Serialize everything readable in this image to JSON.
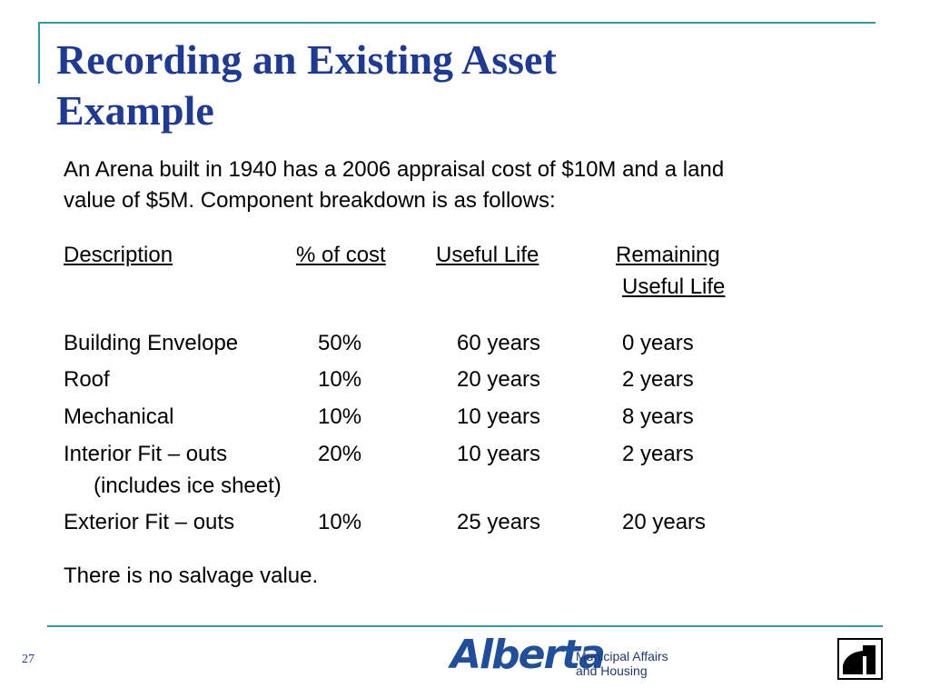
{
  "slide": {
    "title_line1": "Recording an Existing Asset",
    "title_line2": "Example",
    "intro_line1": "An Arena built in 1940 has a 2006 appraisal cost of $10M and a land",
    "intro_line2": "value of $5M.  Component breakdown is as follows:",
    "headers": {
      "description": "Description",
      "pct_cost": "% of cost",
      "useful_life": "Useful Life",
      "remaining_1": "Remaining",
      "remaining_2": "Useful Life"
    },
    "rows": [
      {
        "description": "Building Envelope",
        "pct": "50%",
        "life": "60 years",
        "remaining": "0 years"
      },
      {
        "description": "Roof",
        "pct": "10%",
        "life": "20 years",
        "remaining": "2 years"
      },
      {
        "description": "Mechanical",
        "pct": "10%",
        "life": "10 years",
        "remaining": "8 years"
      },
      {
        "description": "Interior Fit – outs",
        "pct": "20%",
        "life": "10 years",
        "remaining": "2 years",
        "note": "(includes ice sheet)"
      },
      {
        "description": "Exterior Fit – outs",
        "pct": "10%",
        "life": "25 years",
        "remaining": "20 years"
      }
    ],
    "closing": "There is no salvage value.",
    "page_number": "27"
  },
  "footer": {
    "logo_text": "Alberta",
    "logo_subtitle_1": "Municipal Affairs",
    "logo_subtitle_2": "and Housing"
  },
  "colors": {
    "accent": "#2f9aa5",
    "title": "#1f3a93",
    "logo": "#1f4e9c"
  }
}
